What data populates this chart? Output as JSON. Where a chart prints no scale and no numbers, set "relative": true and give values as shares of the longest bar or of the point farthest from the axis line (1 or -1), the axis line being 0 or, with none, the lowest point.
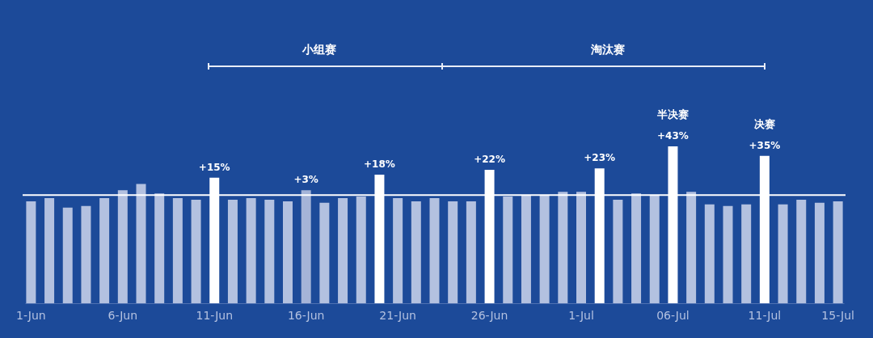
{
  "chart_data": {
    "type": "bar",
    "relative": true,
    "categories": [
      "1-Jun",
      null,
      null,
      null,
      null,
      "6-Jun",
      null,
      null,
      null,
      null,
      "11-Jun",
      null,
      null,
      null,
      null,
      "16-Jun",
      null,
      null,
      null,
      null,
      "21-Jun",
      null,
      null,
      null,
      null,
      "26-Jun",
      null,
      null,
      null,
      null,
      "1-Jul",
      null,
      null,
      null,
      null,
      "06-Jul",
      null,
      null,
      null,
      null,
      "11-Jul",
      null,
      null,
      null,
      "15-Jul"
    ],
    "values": [
      0.65,
      0.67,
      0.61,
      0.62,
      0.67,
      0.72,
      0.76,
      0.7,
      0.67,
      0.66,
      0.8,
      0.66,
      0.67,
      0.66,
      0.65,
      0.72,
      0.64,
      0.67,
      0.68,
      0.82,
      0.67,
      0.65,
      0.67,
      0.65,
      0.65,
      0.85,
      0.68,
      0.69,
      0.69,
      0.71,
      0.71,
      0.86,
      0.66,
      0.7,
      0.69,
      1,
      0.71,
      0.63,
      0.62,
      0.63,
      0.94,
      0.63,
      0.66,
      0.64,
      0.65
    ],
    "colors": [
      "#b3c1e0",
      "#b3c1e0",
      "#b3c1e0",
      "#b3c1e0",
      "#b3c1e0",
      "#b3c1e0",
      "#b3c1e0",
      "#b3c1e0",
      "#b3c1e0",
      "#b3c1e0",
      "#ffffff",
      "#b3c1e0",
      "#b3c1e0",
      "#b3c1e0",
      "#b3c1e0",
      "#a5b4d8",
      "#b3c1e0",
      "#b3c1e0",
      "#b3c1e0",
      "#ffffff",
      "#b3c1e0",
      "#b3c1e0",
      "#b3c1e0",
      "#b3c1e0",
      "#b3c1e0",
      "#ffffff",
      "#b3c1e0",
      "#b3c1e0",
      "#b3c1e0",
      "#b3c1e0",
      "#b3c1e0",
      "#ffffff",
      "#b3c1e0",
      "#b3c1e0",
      "#b3c1e0",
      "#ffffff",
      "#b3c1e0",
      "#b3c1e0",
      "#b3c1e0",
      "#b3c1e0",
      "#ffffff",
      "#b3c1e0",
      "#b3c1e0",
      "#b3c1e0",
      "#b3c1e0"
    ],
    "ref_lines": [
      {
        "axis": "y",
        "value": 0.69,
        "color": "#ffffff"
      }
    ],
    "annotations": [
      "小组赛",
      "淘汰赛",
      "+15%",
      "+3%",
      "+18%",
      "+22%",
      "+23%",
      "+43%",
      "+35%",
      "半决赛",
      "决赛"
    ],
    "grid": false
  }
}
